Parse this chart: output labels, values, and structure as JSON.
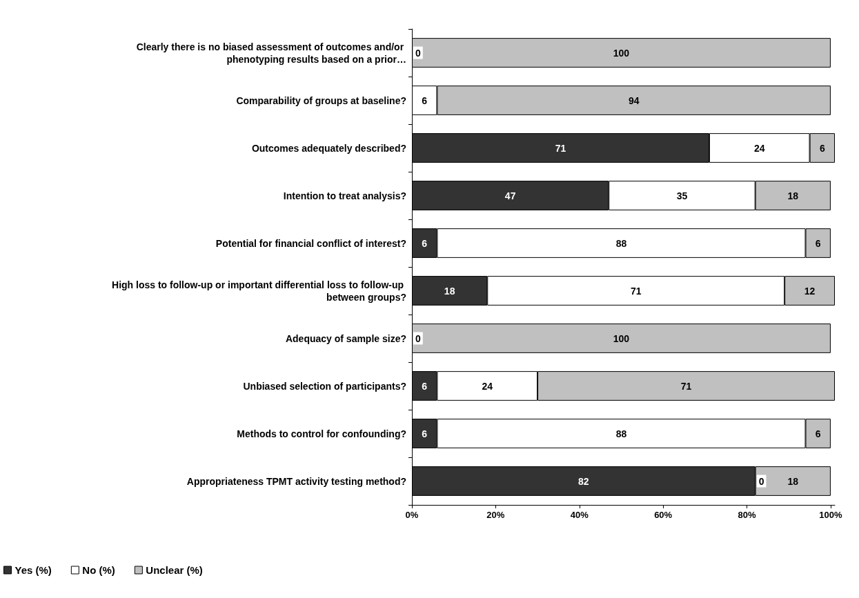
{
  "chart_data": {
    "type": "bar",
    "orientation": "horizontal",
    "stacked": true,
    "categories": [
      "Clearly there is no biased assessment of outcomes and/or phenotyping results based on a prior…",
      "Comparability of groups at baseline?",
      "Outcomes adequately described?",
      "Intention to treat analysis?",
      "Potential for financial conflict of interest?",
      "High loss to follow-up or important differential loss to follow-up between groups?",
      "Adequacy of sample size?",
      "Unbiased selection of participants?",
      "Methods to control for confounding?",
      "Appropriateness TPMT activity testing method?"
    ],
    "series": [
      {
        "name": "Yes (%)",
        "color": "#333333",
        "values": [
          null,
          null,
          71,
          47,
          6,
          18,
          null,
          6,
          6,
          82
        ]
      },
      {
        "name": "No (%)",
        "color": "#ffffff",
        "values": [
          null,
          6,
          24,
          35,
          88,
          71,
          null,
          24,
          88,
          null
        ]
      },
      {
        "name": "Unclear (%)",
        "color": "#c0c0c0",
        "values": [
          100,
          94,
          6,
          18,
          6,
          12,
          100,
          71,
          6,
          18
        ]
      }
    ],
    "annotations": [
      {
        "text": "0",
        "y": "Clearly there is no biased assessment of outcomes and/or phenotyping results based on a prior…"
      },
      {
        "text": "0",
        "y": "Adequacy of sample size?"
      },
      {
        "text": "0",
        "y": "Appropriateness TPMT activity testing method?"
      }
    ],
    "xlim": [
      0,
      101
    ],
    "xticks": [
      {
        "value": 0,
        "label": "0%"
      },
      {
        "value": 20,
        "label": "20%"
      },
      {
        "value": 40,
        "label": "40%"
      },
      {
        "value": 60,
        "label": "60%"
      },
      {
        "value": 80,
        "label": "80%"
      },
      {
        "value": 100,
        "label": "100%"
      }
    ],
    "data_labels": true,
    "grid": false,
    "legend": "bottom left"
  }
}
